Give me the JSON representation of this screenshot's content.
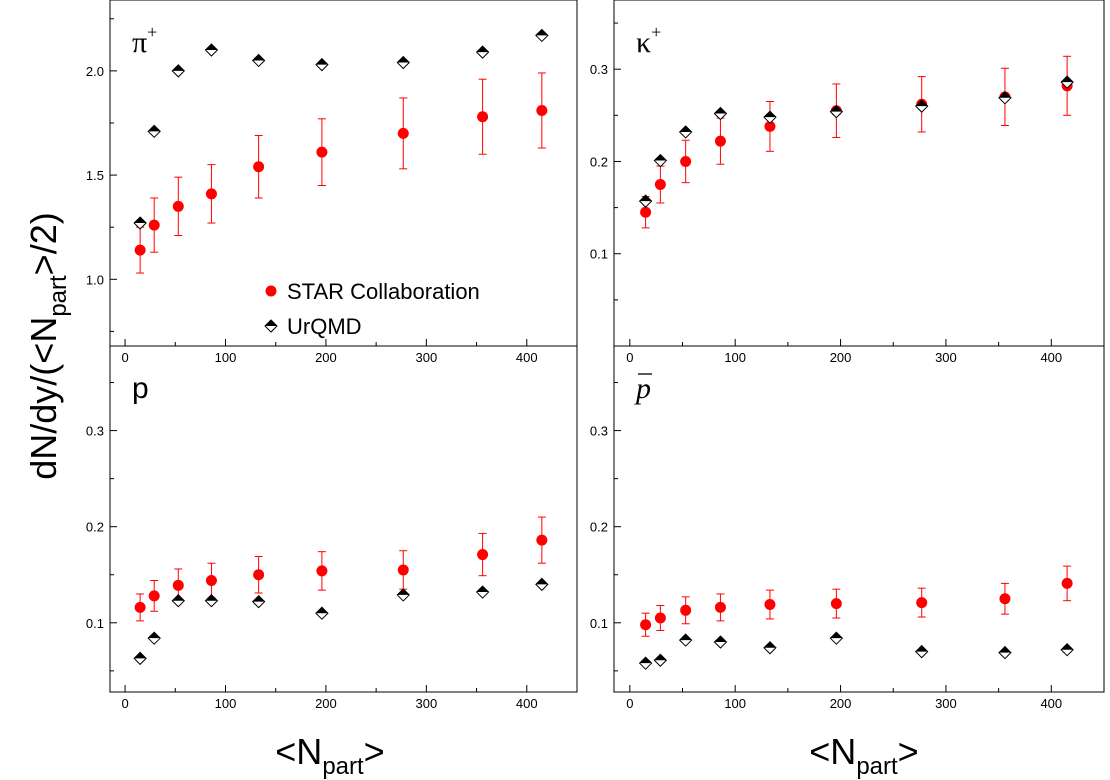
{
  "chart_data": {
    "type": "scatter",
    "ylabel": "dN/dy/(<N",
    "ylabel_sub": "part",
    "ylabel_end": ">/2)",
    "xlabel": "<N",
    "xlabel_sub": "part",
    "xlabel_end": ">",
    "legend": {
      "placement": "inside bottom-right of top-left panel",
      "items": [
        {
          "name": "STAR Collaboration",
          "marker": "filled-circle",
          "color": "#ff0000"
        },
        {
          "name": "UrQMD",
          "marker": "half-filled-diamond",
          "color": "#000000"
        }
      ]
    },
    "colors": {
      "star": "#ff0000",
      "urqmd": "#000000"
    },
    "xlim": [
      -15,
      450
    ],
    "xticks": [
      0,
      100,
      200,
      300,
      400
    ],
    "xtick_labels": [
      "0",
      "100",
      "200",
      "300",
      "400"
    ],
    "panels": [
      {
        "id": "pi-plus",
        "label": "π",
        "label_sup": "+",
        "ylim": [
          0.68,
          2.34
        ],
        "yticks": [
          1.0,
          1.5,
          2.0
        ],
        "ytick_labels": [
          "1.0",
          "1.5",
          "2.0"
        ],
        "star": {
          "x": [
            15,
            29,
            53,
            86,
            133,
            196,
            277,
            356,
            415
          ],
          "y": [
            1.14,
            1.26,
            1.35,
            1.41,
            1.54,
            1.61,
            1.7,
            1.78,
            1.81
          ],
          "err": [
            0.11,
            0.13,
            0.14,
            0.14,
            0.15,
            0.16,
            0.17,
            0.18,
            0.18
          ]
        },
        "urqmd": {
          "x": [
            15,
            29,
            53,
            86,
            133,
            196,
            277,
            356,
            415
          ],
          "y": [
            1.27,
            1.71,
            2.0,
            2.1,
            2.05,
            2.03,
            2.04,
            2.09,
            2.17
          ]
        }
      },
      {
        "id": "k-plus",
        "label": "κ",
        "label_sup": "+",
        "ylim": [
          0.0,
          0.375
        ],
        "yticks": [
          0.1,
          0.2,
          0.3
        ],
        "ytick_labels": [
          "0.1",
          "0.2",
          "0.3"
        ],
        "star": {
          "x": [
            15,
            29,
            53,
            86,
            133,
            196,
            277,
            356,
            415
          ],
          "y": [
            0.145,
            0.175,
            0.2,
            0.222,
            0.238,
            0.255,
            0.262,
            0.27,
            0.282
          ],
          "err": [
            0.017,
            0.02,
            0.023,
            0.025,
            0.027,
            0.029,
            0.03,
            0.031,
            0.032
          ]
        },
        "urqmd": {
          "x": [
            15,
            29,
            53,
            86,
            133,
            196,
            277,
            356,
            415
          ],
          "y": [
            0.157,
            0.201,
            0.232,
            0.252,
            0.248,
            0.254,
            0.26,
            0.269,
            0.286
          ]
        }
      },
      {
        "id": "proton",
        "label": "p",
        "label_sup": "",
        "ylim": [
          0.028,
          0.388
        ],
        "yticks": [
          0.1,
          0.2,
          0.3
        ],
        "ytick_labels": [
          "0.1",
          "0.2",
          "0.3"
        ],
        "star": {
          "x": [
            15,
            29,
            53,
            86,
            133,
            196,
            277,
            356,
            415
          ],
          "y": [
            0.116,
            0.128,
            0.139,
            0.144,
            0.15,
            0.154,
            0.155,
            0.171,
            0.186
          ],
          "err": [
            0.014,
            0.016,
            0.017,
            0.018,
            0.019,
            0.02,
            0.02,
            0.022,
            0.024
          ]
        },
        "urqmd": {
          "x": [
            15,
            29,
            53,
            86,
            133,
            196,
            277,
            356,
            415
          ],
          "y": [
            0.063,
            0.084,
            0.123,
            0.123,
            0.122,
            0.11,
            0.129,
            0.132,
            0.14
          ]
        }
      },
      {
        "id": "antiproton",
        "label": "p",
        "label_sup": "",
        "label_overline": true,
        "ylim": [
          0.028,
          0.388
        ],
        "yticks": [
          0.1,
          0.2,
          0.3
        ],
        "ytick_labels": [
          "0.1",
          "0.2",
          "0.3"
        ],
        "star": {
          "x": [
            15,
            29,
            53,
            86,
            133,
            196,
            277,
            356,
            415
          ],
          "y": [
            0.098,
            0.105,
            0.113,
            0.116,
            0.119,
            0.12,
            0.121,
            0.125,
            0.141
          ],
          "err": [
            0.012,
            0.013,
            0.014,
            0.014,
            0.015,
            0.015,
            0.015,
            0.016,
            0.018
          ]
        },
        "urqmd": {
          "x": [
            15,
            29,
            53,
            86,
            133,
            196,
            277,
            356,
            415
          ],
          "y": [
            0.058,
            0.061,
            0.082,
            0.08,
            0.074,
            0.084,
            0.07,
            0.069,
            0.072
          ]
        }
      }
    ]
  }
}
